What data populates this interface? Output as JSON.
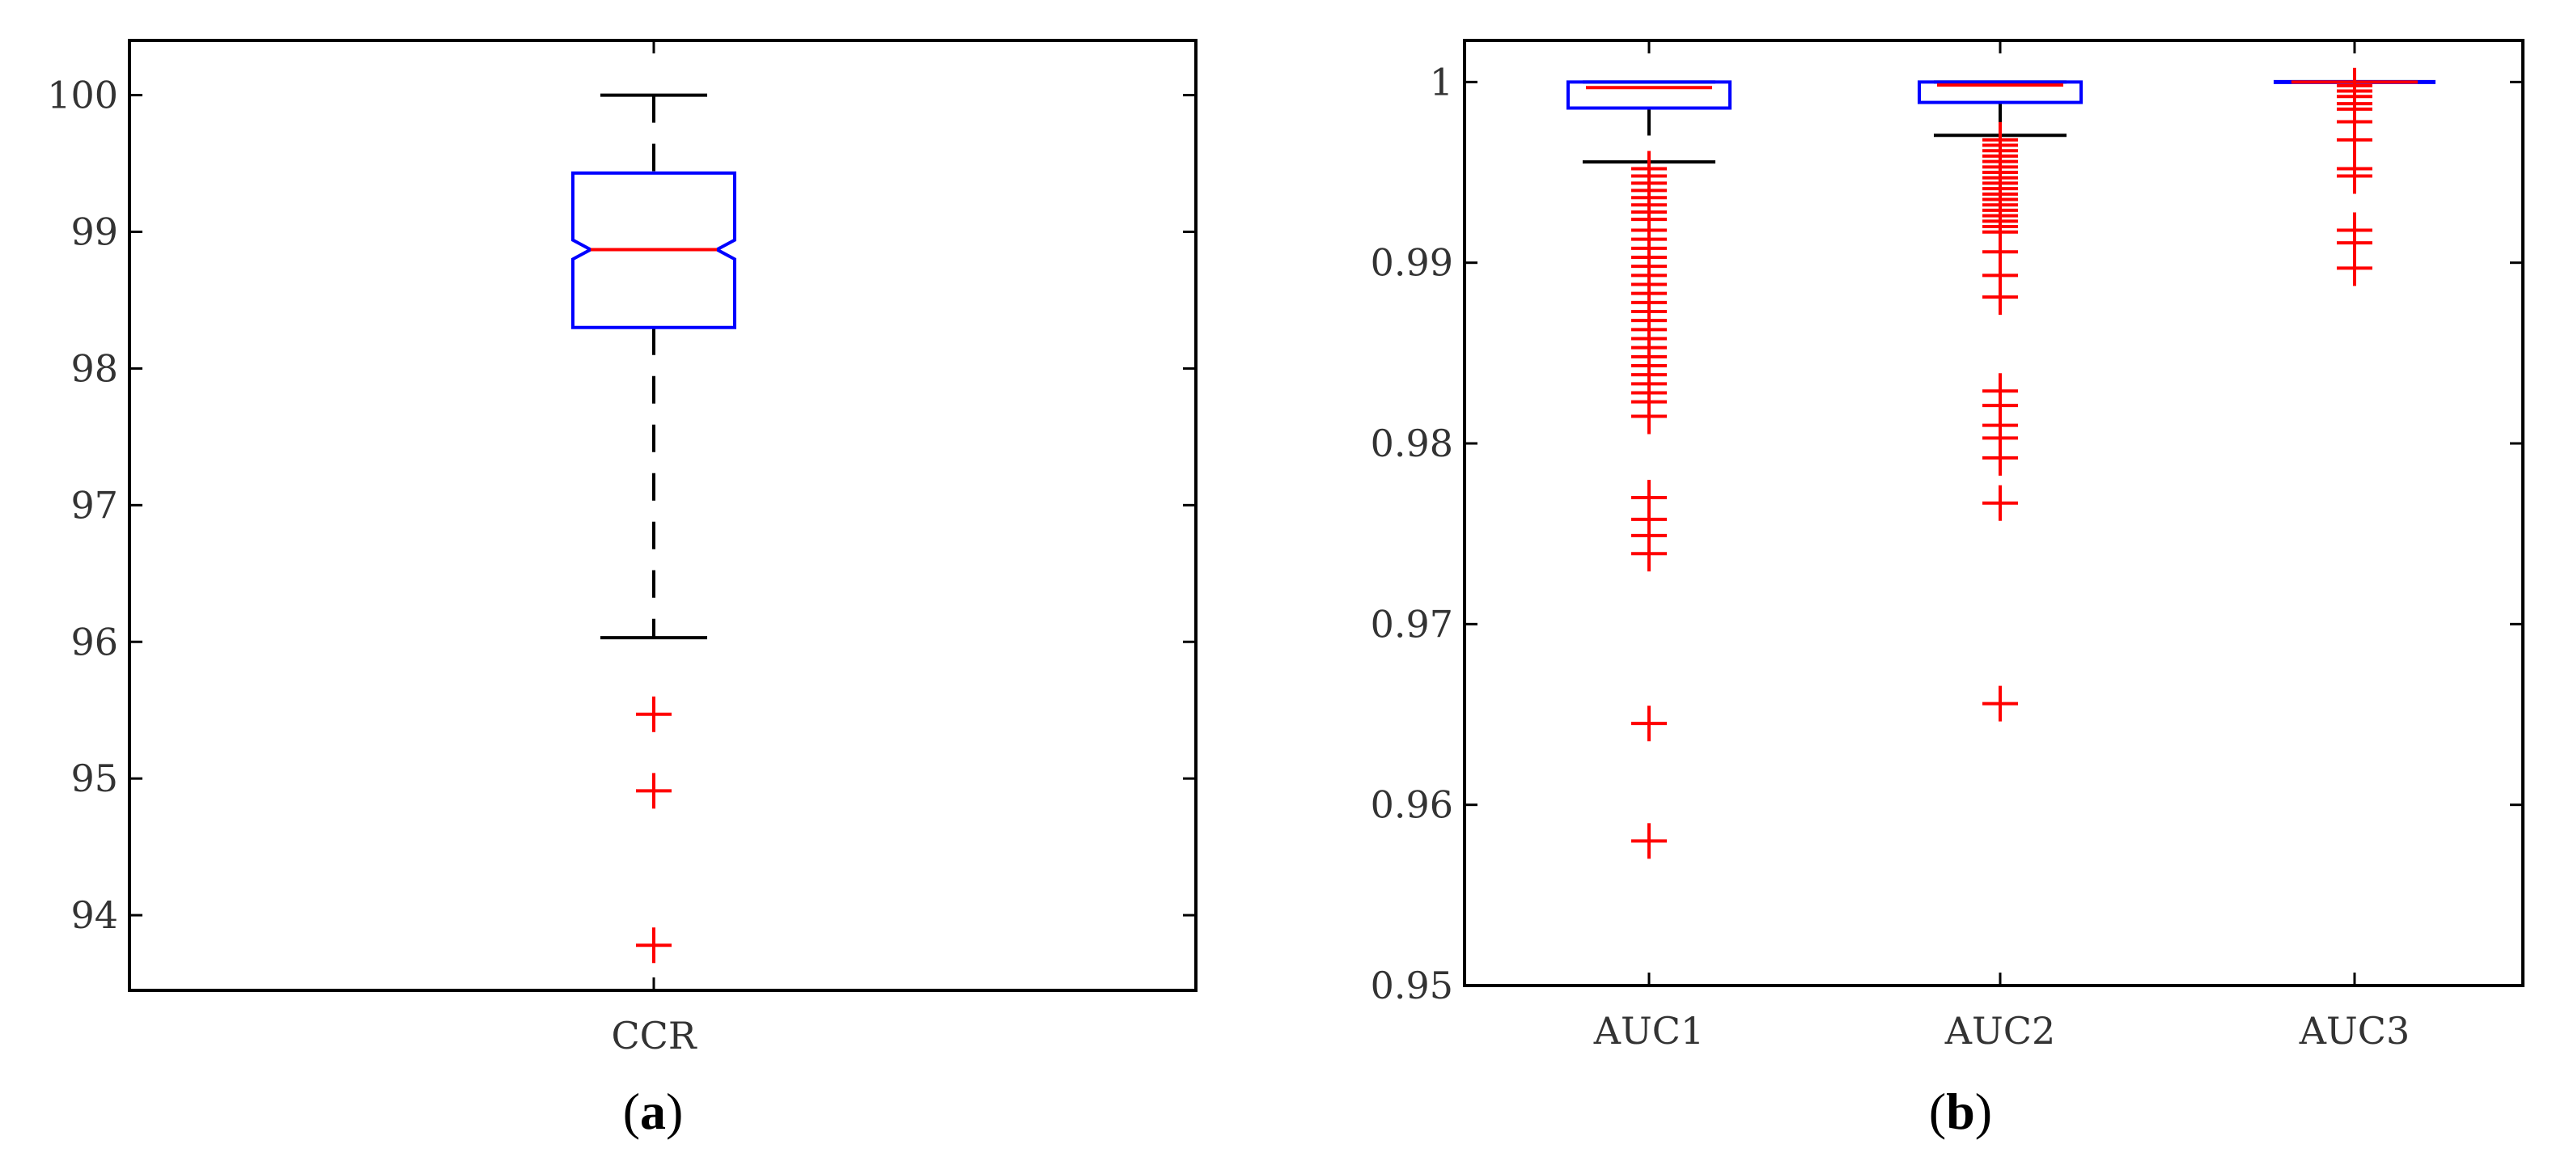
{
  "colors": {
    "box": "#0000ff",
    "median": "#ff0000",
    "outlier": "#ff0000",
    "whisker": "#000000",
    "axis": "#000000"
  },
  "chart_data": [
    {
      "type": "box",
      "panel_label": "a",
      "categories": [
        "CCR"
      ],
      "ylim": [
        93.45,
        100.4
      ],
      "yticks": [
        {
          "value": 94,
          "label": "94"
        },
        {
          "value": 95,
          "label": "95"
        },
        {
          "value": 96,
          "label": "96"
        },
        {
          "value": 97,
          "label": "97"
        },
        {
          "value": 98,
          "label": "98"
        },
        {
          "value": 99,
          "label": "99"
        },
        {
          "value": 100,
          "label": "100"
        }
      ],
      "notched": true,
      "boxes": [
        {
          "category": "CCR",
          "q1": 98.3,
          "median": 98.87,
          "q3": 99.43,
          "notch_low": 98.8,
          "notch_high": 98.94,
          "whisker_low": 96.03,
          "whisker_high": 100.0,
          "outliers": [
            95.47,
            94.91,
            93.78
          ]
        }
      ]
    },
    {
      "type": "box",
      "panel_label": "b",
      "categories": [
        "AUC1",
        "AUC2",
        "AUC3"
      ],
      "ylim": [
        0.95,
        1.0023
      ],
      "yticks": [
        {
          "value": 0.95,
          "label": "0.95"
        },
        {
          "value": 0.96,
          "label": "0.96"
        },
        {
          "value": 0.97,
          "label": "0.97"
        },
        {
          "value": 0.98,
          "label": "0.98"
        },
        {
          "value": 0.99,
          "label": "0.99"
        },
        {
          "value": 1.0,
          "label": "1"
        }
      ],
      "notched": true,
      "boxes": [
        {
          "category": "AUC1",
          "q1": 0.99856,
          "median": 0.99969,
          "q3": 1.0,
          "whisker_low": 0.99558,
          "whisker_high": 1.0,
          "outliers": [
            0.9952,
            0.9948,
            0.9944,
            0.994,
            0.9936,
            0.9932,
            0.9928,
            0.9924,
            0.9918,
            0.9913,
            0.9908,
            0.9903,
            0.9898,
            0.9893,
            0.9888,
            0.9883,
            0.9878,
            0.9873,
            0.9868,
            0.9863,
            0.9858,
            0.9853,
            0.9848,
            0.9843,
            0.9838,
            0.9833,
            0.9828,
            0.9823,
            0.9815,
            0.977,
            0.9758,
            0.9749,
            0.9739,
            0.9645,
            0.958
          ]
        },
        {
          "category": "AUC2",
          "q1": 0.99887,
          "median": 0.99983,
          "q3": 1.0,
          "whisker_low": 0.99705,
          "whisker_high": 1.0,
          "outliers": [
            0.9968,
            0.9965,
            0.9962,
            0.9959,
            0.9956,
            0.9953,
            0.995,
            0.9947,
            0.9944,
            0.9941,
            0.9938,
            0.9935,
            0.9932,
            0.9929,
            0.9926,
            0.9923,
            0.992,
            0.9917,
            0.9906,
            0.9893,
            0.9881,
            0.9829,
            0.9821,
            0.981,
            0.9803,
            0.9792,
            0.9767,
            0.9656
          ]
        },
        {
          "category": "AUC3",
          "q1": 1.0,
          "median": 1.0,
          "q3": 1.0,
          "whisker_low": 1.0,
          "whisker_high": 1.0,
          "outliers": [
            0.9998,
            0.9995,
            0.9992,
            0.9988,
            0.9985,
            0.9978,
            0.9968,
            0.9952,
            0.9948,
            0.9918,
            0.9911,
            0.9897
          ]
        }
      ]
    }
  ]
}
